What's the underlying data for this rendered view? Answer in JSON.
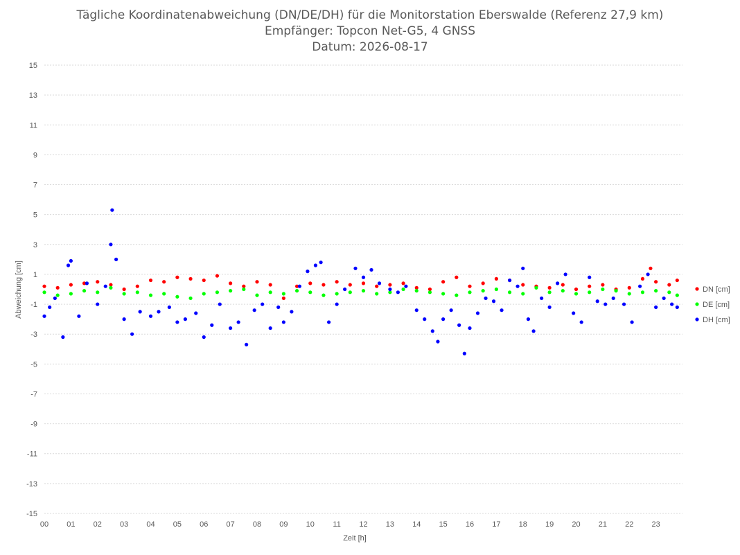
{
  "chart_data": {
    "type": "scatter",
    "title_lines": [
      "Tägliche Koordinatenabweichung (DN/DE/DH) für die Monitorstation Eberswalde (Referenz 27,9 km)",
      "Empfänger: Topcon Net-G5, 4 GNSS",
      "Datum: 2026-08-17"
    ],
    "xlabel": "Zeit [h]",
    "ylabel": "Abweichung [cm]",
    "xlim": [
      0,
      24
    ],
    "ylim": [
      -15,
      15
    ],
    "x_ticks": [
      "00",
      "01",
      "02",
      "03",
      "04",
      "05",
      "06",
      "07",
      "08",
      "09",
      "10",
      "11",
      "12",
      "13",
      "14",
      "15",
      "16",
      "17",
      "18",
      "19",
      "20",
      "21",
      "22",
      "23"
    ],
    "y_ticks": [
      15,
      13,
      11,
      9,
      7,
      5,
      3,
      1,
      -1,
      -3,
      -5,
      -7,
      -9,
      -11,
      -13,
      -15
    ],
    "grid": "horizontal dotted",
    "legend_position": "right",
    "colors": {
      "DN": "#ff0000",
      "DE": "#00ff00",
      "DH": "#0000ff"
    },
    "series": [
      {
        "name": "DN [cm]",
        "color": "#ff0000",
        "points": [
          [
            0.0,
            0.2
          ],
          [
            0.5,
            0.1
          ],
          [
            1.0,
            0.3
          ],
          [
            1.5,
            0.4
          ],
          [
            2.0,
            0.5
          ],
          [
            2.5,
            0.3
          ],
          [
            3.0,
            0.0
          ],
          [
            3.5,
            0.2
          ],
          [
            4.0,
            0.6
          ],
          [
            4.5,
            0.5
          ],
          [
            5.0,
            0.8
          ],
          [
            5.5,
            0.7
          ],
          [
            6.0,
            0.6
          ],
          [
            6.5,
            0.9
          ],
          [
            7.0,
            0.4
          ],
          [
            7.5,
            0.2
          ],
          [
            8.0,
            0.5
          ],
          [
            8.5,
            0.3
          ],
          [
            9.0,
            -0.6
          ],
          [
            9.5,
            0.2
          ],
          [
            10.0,
            0.4
          ],
          [
            10.5,
            0.3
          ],
          [
            11.0,
            0.5
          ],
          [
            11.5,
            0.3
          ],
          [
            12.0,
            0.4
          ],
          [
            12.5,
            0.2
          ],
          [
            13.0,
            0.3
          ],
          [
            13.5,
            0.4
          ],
          [
            14.0,
            0.1
          ],
          [
            14.5,
            0.0
          ],
          [
            15.0,
            0.5
          ],
          [
            15.5,
            0.8
          ],
          [
            16.0,
            0.2
          ],
          [
            16.5,
            0.4
          ],
          [
            17.0,
            0.7
          ],
          [
            17.5,
            0.6
          ],
          [
            18.0,
            0.3
          ],
          [
            18.5,
            0.2
          ],
          [
            19.0,
            0.1
          ],
          [
            19.5,
            0.3
          ],
          [
            20.0,
            0.0
          ],
          [
            20.5,
            0.2
          ],
          [
            21.0,
            0.3
          ],
          [
            21.5,
            0.0
          ],
          [
            22.0,
            0.1
          ],
          [
            22.5,
            0.7
          ],
          [
            22.8,
            1.4
          ],
          [
            23.0,
            0.5
          ],
          [
            23.5,
            0.3
          ],
          [
            23.8,
            0.6
          ]
        ]
      },
      {
        "name": "DE [cm]",
        "color": "#00ff00",
        "points": [
          [
            0.0,
            -0.2
          ],
          [
            0.5,
            -0.4
          ],
          [
            1.0,
            -0.3
          ],
          [
            1.5,
            -0.1
          ],
          [
            2.0,
            -0.2
          ],
          [
            2.5,
            0.1
          ],
          [
            3.0,
            -0.3
          ],
          [
            3.5,
            -0.2
          ],
          [
            4.0,
            -0.4
          ],
          [
            4.5,
            -0.3
          ],
          [
            5.0,
            -0.5
          ],
          [
            5.5,
            -0.6
          ],
          [
            6.0,
            -0.3
          ],
          [
            6.5,
            -0.2
          ],
          [
            7.0,
            -0.1
          ],
          [
            7.5,
            0.0
          ],
          [
            8.0,
            -0.4
          ],
          [
            8.5,
            -0.2
          ],
          [
            9.0,
            -0.3
          ],
          [
            9.5,
            -0.1
          ],
          [
            10.0,
            -0.2
          ],
          [
            10.5,
            -0.4
          ],
          [
            11.0,
            -0.3
          ],
          [
            11.5,
            -0.2
          ],
          [
            12.0,
            -0.1
          ],
          [
            12.5,
            -0.3
          ],
          [
            13.0,
            -0.2
          ],
          [
            13.5,
            0.0
          ],
          [
            14.0,
            -0.1
          ],
          [
            14.5,
            -0.2
          ],
          [
            15.0,
            -0.3
          ],
          [
            15.5,
            -0.4
          ],
          [
            16.0,
            -0.2
          ],
          [
            16.5,
            -0.1
          ],
          [
            17.0,
            0.0
          ],
          [
            17.5,
            -0.2
          ],
          [
            18.0,
            -0.3
          ],
          [
            18.5,
            0.1
          ],
          [
            19.0,
            -0.2
          ],
          [
            19.5,
            -0.1
          ],
          [
            20.0,
            -0.3
          ],
          [
            20.5,
            -0.2
          ],
          [
            21.0,
            0.0
          ],
          [
            21.5,
            -0.1
          ],
          [
            22.0,
            -0.3
          ],
          [
            22.5,
            -0.2
          ],
          [
            23.0,
            -0.1
          ],
          [
            23.5,
            -0.2
          ],
          [
            23.8,
            -0.4
          ]
        ]
      },
      {
        "name": "DH [cm]",
        "color": "#0000ff",
        "points": [
          [
            0.0,
            -1.8
          ],
          [
            0.2,
            -1.2
          ],
          [
            0.4,
            -0.6
          ],
          [
            0.7,
            -3.2
          ],
          [
            0.9,
            1.6
          ],
          [
            1.0,
            1.9
          ],
          [
            1.3,
            -1.8
          ],
          [
            1.6,
            0.4
          ],
          [
            2.0,
            -1.0
          ],
          [
            2.3,
            0.2
          ],
          [
            2.5,
            3.0
          ],
          [
            2.55,
            5.3
          ],
          [
            2.7,
            2.0
          ],
          [
            3.0,
            -2.0
          ],
          [
            3.3,
            -3.0
          ],
          [
            3.6,
            -1.5
          ],
          [
            4.0,
            -1.8
          ],
          [
            4.3,
            -1.5
          ],
          [
            4.7,
            -1.2
          ],
          [
            5.0,
            -2.2
          ],
          [
            5.3,
            -2.0
          ],
          [
            5.7,
            -1.6
          ],
          [
            6.0,
            -3.2
          ],
          [
            6.3,
            -2.4
          ],
          [
            6.6,
            -1.0
          ],
          [
            7.0,
            -2.6
          ],
          [
            7.3,
            -2.2
          ],
          [
            7.6,
            -3.7
          ],
          [
            7.9,
            -1.4
          ],
          [
            8.2,
            -1.0
          ],
          [
            8.5,
            -2.6
          ],
          [
            8.8,
            -1.2
          ],
          [
            9.0,
            -2.2
          ],
          [
            9.3,
            -1.5
          ],
          [
            9.6,
            0.2
          ],
          [
            9.9,
            1.2
          ],
          [
            10.2,
            1.6
          ],
          [
            10.4,
            1.8
          ],
          [
            10.7,
            -2.2
          ],
          [
            11.0,
            -1.0
          ],
          [
            11.3,
            0.0
          ],
          [
            11.7,
            1.4
          ],
          [
            12.0,
            0.8
          ],
          [
            12.3,
            1.3
          ],
          [
            12.6,
            0.4
          ],
          [
            13.0,
            0.0
          ],
          [
            13.3,
            -0.2
          ],
          [
            13.6,
            0.2
          ],
          [
            14.0,
            -1.4
          ],
          [
            14.3,
            -2.0
          ],
          [
            14.6,
            -2.8
          ],
          [
            14.8,
            -3.5
          ],
          [
            15.0,
            -2.0
          ],
          [
            15.3,
            -1.4
          ],
          [
            15.6,
            -2.4
          ],
          [
            15.8,
            -4.3
          ],
          [
            16.0,
            -2.6
          ],
          [
            16.3,
            -1.6
          ],
          [
            16.6,
            -0.6
          ],
          [
            16.9,
            -0.8
          ],
          [
            17.2,
            -1.4
          ],
          [
            17.5,
            0.6
          ],
          [
            17.8,
            0.2
          ],
          [
            18.0,
            1.4
          ],
          [
            18.2,
            -2.0
          ],
          [
            18.4,
            -2.8
          ],
          [
            18.7,
            -0.6
          ],
          [
            19.0,
            -1.2
          ],
          [
            19.3,
            0.4
          ],
          [
            19.6,
            1.0
          ],
          [
            19.9,
            -1.6
          ],
          [
            20.2,
            -2.2
          ],
          [
            20.5,
            0.8
          ],
          [
            20.8,
            -0.8
          ],
          [
            21.1,
            -1.0
          ],
          [
            21.4,
            -0.6
          ],
          [
            21.8,
            -1.0
          ],
          [
            22.1,
            -2.2
          ],
          [
            22.4,
            0.2
          ],
          [
            22.7,
            1.0
          ],
          [
            23.0,
            -1.2
          ],
          [
            23.3,
            -0.6
          ],
          [
            23.6,
            -1.0
          ],
          [
            23.8,
            -1.2
          ]
        ]
      }
    ]
  }
}
